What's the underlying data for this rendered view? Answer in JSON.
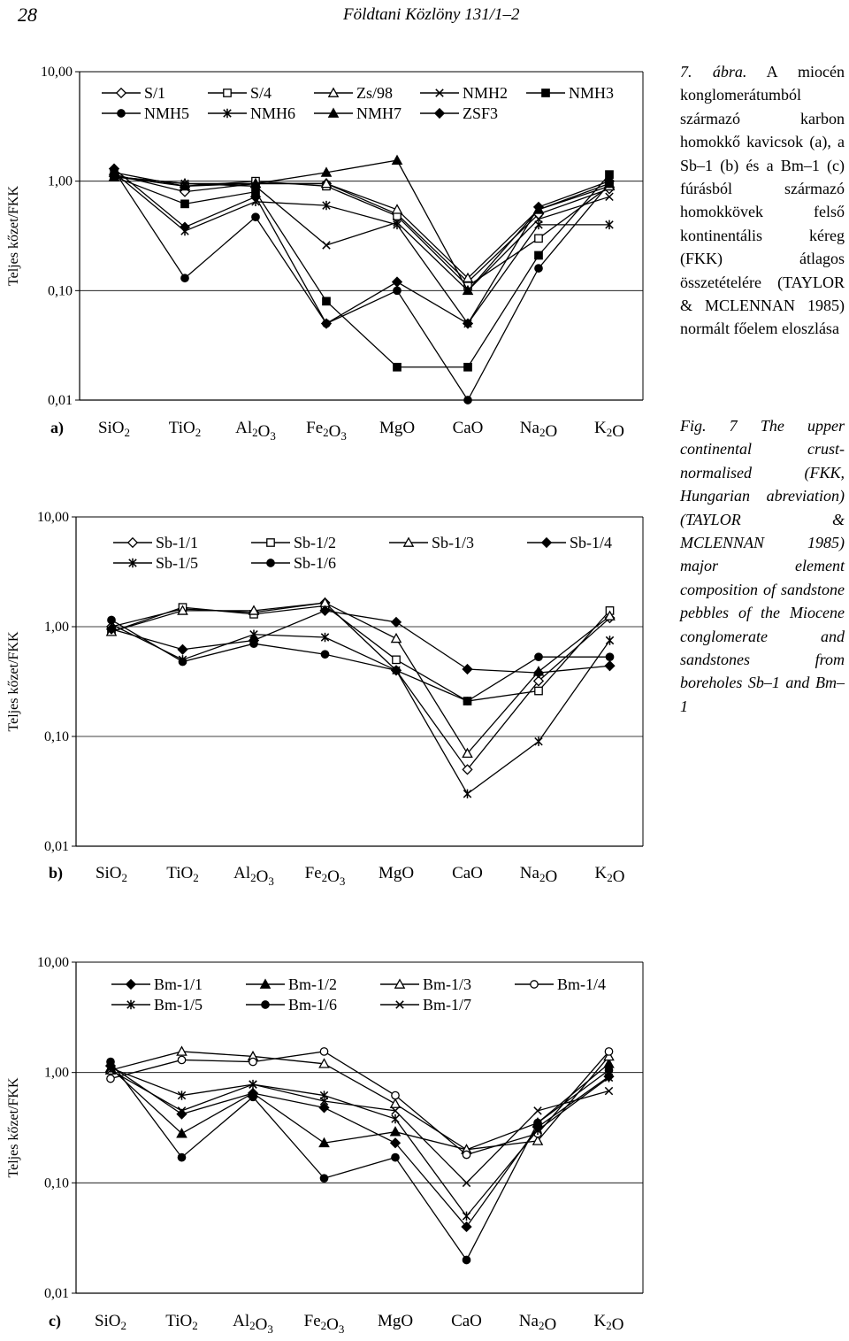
{
  "header": {
    "page_number": "28",
    "running_title": "Földtani Közlöny 131/1–2"
  },
  "caption": {
    "hu_num": "7. ábra.",
    "hu_text": "A miocén konglomerátumból származó karbon homokkő kavicsok (a), a Sb–1 (b) és a Bm–1 (c) fúrásból származó homokkövek felső kontinentális kéreg (FKK) átlagos összetételére (TAYLOR & MCLENNAN 1985) normált főelem eloszlása",
    "en_num": "Fig. 7",
    "en_text": "The upper continental crust-normalised (FKK, Hungarian abreviation) (TAYLOR & MCLENNAN 1985) major element composition of sandstone pebbles of the Miocene conglomerate and sandstones from boreholes Sb–1 and Bm–1"
  },
  "chart_data": [
    {
      "panel": "a)",
      "type": "line",
      "yscale": "log",
      "ylabel": "Teljes kőzet/FKK",
      "ylim": [
        0.01,
        10
      ],
      "yticks": [
        "10,00",
        "1,00",
        "0,10",
        "0,01"
      ],
      "categories": [
        "SiO2",
        "TiO2",
        "Al2O3",
        "Fe2O3",
        "MgO",
        "CaO",
        "Na2O",
        "K2O"
      ],
      "grid": "horizontal at 1,00 and 0,10",
      "legend_position": "top",
      "series": [
        {
          "name": "S/1",
          "marker": "diamond-open",
          "values": [
            1.15,
            0.8,
            0.95,
            0.95,
            0.5,
            0.12,
            0.5,
            0.85
          ]
        },
        {
          "name": "S/4",
          "marker": "square-open",
          "values": [
            1.1,
            0.9,
            1.0,
            0.9,
            0.48,
            0.11,
            0.3,
            0.9
          ]
        },
        {
          "name": "Zs/98",
          "marker": "triangle-open",
          "values": [
            1.1,
            0.95,
            0.95,
            0.95,
            0.55,
            0.13,
            0.55,
            0.9
          ]
        },
        {
          "name": "NMH2",
          "marker": "x",
          "values": [
            1.1,
            0.95,
            0.9,
            0.26,
            0.42,
            0.1,
            0.45,
            0.72
          ]
        },
        {
          "name": "NMH3",
          "marker": "square-filled",
          "values": [
            1.1,
            0.62,
            0.8,
            0.08,
            0.02,
            0.02,
            0.21,
            1.15
          ]
        },
        {
          "name": "NMH5",
          "marker": "circle-filled",
          "values": [
            1.25,
            0.13,
            0.47,
            0.05,
            0.1,
            0.01,
            0.16,
            0.95
          ]
        },
        {
          "name": "NMH6",
          "marker": "star",
          "values": [
            1.2,
            0.35,
            0.65,
            0.6,
            0.4,
            0.05,
            0.4,
            0.4
          ]
        },
        {
          "name": "NMH7",
          "marker": "triangle-filled",
          "values": [
            1.2,
            0.9,
            0.95,
            1.2,
            1.55,
            0.1,
            0.55,
            0.95
          ]
        },
        {
          "name": "ZSF3",
          "marker": "diamond-filled",
          "values": [
            1.3,
            0.38,
            0.72,
            0.05,
            0.12,
            0.05,
            0.58,
            1.0
          ]
        }
      ]
    },
    {
      "panel": "b)",
      "type": "line",
      "yscale": "log",
      "ylabel": "Teljes kőzet/FKK",
      "ylim": [
        0.01,
        10
      ],
      "yticks": [
        "10,00",
        "1,00",
        "0,10",
        "0,01"
      ],
      "categories": [
        "SiO2",
        "TiO2",
        "Al2O3",
        "Fe2O3",
        "MgO",
        "CaO",
        "Na2O",
        "K2O"
      ],
      "grid": "horizontal at 1,00 and 0,10",
      "legend_position": "top",
      "series": [
        {
          "name": "Sb-1/1",
          "marker": "diamond-open",
          "values": [
            1.0,
            1.45,
            1.35,
            1.65,
            0.4,
            0.05,
            0.32,
            1.2
          ]
        },
        {
          "name": "Sb-1/2",
          "marker": "square-open",
          "values": [
            0.9,
            1.5,
            1.3,
            1.55,
            0.5,
            0.21,
            0.26,
            1.4
          ]
        },
        {
          "name": "Sb-1/3",
          "marker": "triangle-open",
          "values": [
            0.9,
            1.4,
            1.4,
            1.65,
            0.78,
            0.07,
            0.39,
            1.25
          ]
        },
        {
          "name": "Sb-1/4",
          "marker": "diamond-filled",
          "values": [
            0.95,
            0.62,
            0.75,
            1.4,
            1.1,
            0.41,
            0.38,
            0.44
          ]
        },
        {
          "name": "Sb-1/5",
          "marker": "star",
          "values": [
            1.05,
            0.5,
            0.85,
            0.8,
            0.4,
            0.03,
            0.09,
            0.75
          ]
        },
        {
          "name": "Sb-1/6",
          "marker": "circle-filled",
          "values": [
            1.15,
            0.48,
            0.7,
            0.56,
            0.4,
            0.21,
            0.53,
            0.53
          ]
        }
      ]
    },
    {
      "panel": "c)",
      "type": "line",
      "yscale": "log",
      "ylabel": "Teljes kőzet/FKK",
      "ylim": [
        0.01,
        10
      ],
      "yticks": [
        "10,00",
        "1,00",
        "0,10",
        "0,01"
      ],
      "categories": [
        "SiO2",
        "TiO2",
        "Al2O3",
        "Fe2O3",
        "MgO",
        "CaO",
        "Na2O",
        "K2O"
      ],
      "grid": "horizontal at 1,00 and 0,10",
      "legend_position": "top",
      "series": [
        {
          "name": "Bm-1/1",
          "marker": "diamond-filled",
          "values": [
            1.15,
            0.42,
            0.65,
            0.48,
            0.23,
            0.04,
            0.32,
            0.92
          ]
        },
        {
          "name": "Bm-1/2",
          "marker": "triangle-filled",
          "values": [
            1.1,
            0.28,
            0.65,
            0.23,
            0.29,
            0.2,
            0.35,
            1.2
          ]
        },
        {
          "name": "Bm-1/3",
          "marker": "triangle-open",
          "values": [
            1.05,
            1.55,
            1.4,
            1.2,
            0.52,
            0.2,
            0.24,
            1.4
          ]
        },
        {
          "name": "Bm-1/4",
          "marker": "circle-open",
          "values": [
            0.88,
            1.3,
            1.25,
            1.55,
            0.62,
            0.18,
            0.28,
            1.55
          ]
        },
        {
          "name": "Bm-1/5",
          "marker": "star",
          "values": [
            1.1,
            0.62,
            0.78,
            0.62,
            0.38,
            0.05,
            0.3,
            0.9
          ]
        },
        {
          "name": "Bm-1/6",
          "marker": "circle-filled",
          "values": [
            1.25,
            0.17,
            0.6,
            0.11,
            0.17,
            0.02,
            0.35,
            1.05
          ]
        },
        {
          "name": "Bm-1/7",
          "marker": "x",
          "values": [
            1.05,
            0.45,
            0.78,
            0.55,
            0.45,
            0.1,
            0.45,
            0.68
          ]
        }
      ]
    }
  ]
}
